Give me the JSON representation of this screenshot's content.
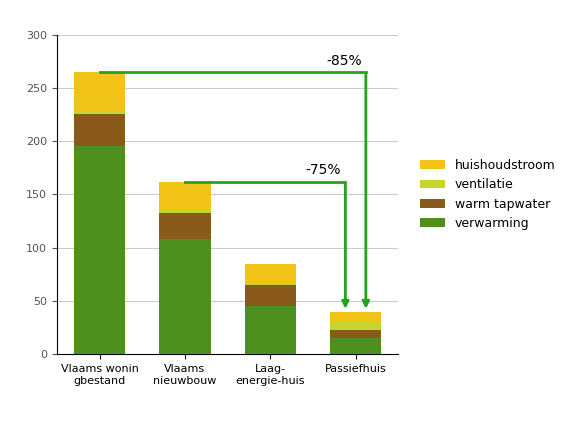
{
  "chart_data": {
    "type": "bar",
    "stacked": true,
    "grid": true,
    "legend": "right",
    "categories": [
      "Vlaams woningbestand",
      "Vlaams nieuwbouw",
      "Laag-energie-huis",
      "Passiefhuis"
    ],
    "series": [
      {
        "name": "verwarming",
        "color": "#4e8f1e",
        "values": [
          195,
          108,
          45,
          15
        ]
      },
      {
        "name": "warm tapwater",
        "color": "#8a5a1c",
        "values": [
          30,
          25,
          20,
          8
        ]
      },
      {
        "name": "ventilatie",
        "color": "#c6d630",
        "values": [
          3,
          3,
          2,
          7
        ]
      },
      {
        "name": "huishoudstroom",
        "color": "#f2c418",
        "values": [
          37,
          26,
          18,
          10
        ]
      }
    ],
    "ylim": [
      0,
      300
    ],
    "yticks": [
      0,
      50,
      100,
      150,
      200,
      250,
      300
    ],
    "annotations": [
      {
        "text": "-85%",
        "from": "Vlaams woningbestand",
        "to": "Passiefhuis",
        "color": "#22a322"
      },
      {
        "text": "-75%",
        "from": "Vlaams nieuwbouw",
        "to": "Passiefhuis",
        "color": "#22a322"
      }
    ]
  }
}
